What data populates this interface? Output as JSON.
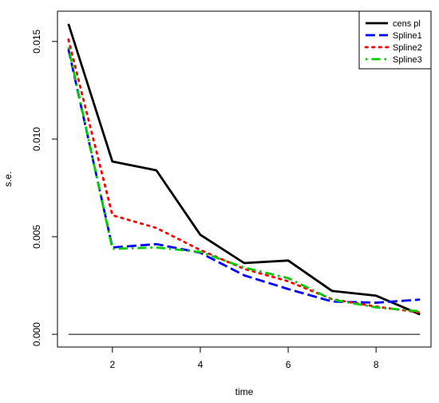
{
  "chart_data": {
    "type": "line",
    "xlabel": "time",
    "ylabel": "s.e.",
    "xlim": [
      0.75,
      9.25
    ],
    "ylim": [
      -0.00065,
      0.01655
    ],
    "x_ticks": [
      2,
      4,
      6,
      8
    ],
    "x_tick_labels": [
      "2",
      "4",
      "6",
      "8"
    ],
    "y_ticks": [
      0.0,
      0.005,
      0.01,
      0.015
    ],
    "y_tick_labels": [
      "0.000",
      "0.005",
      "0.010",
      "0.015"
    ],
    "legend_position": "top-right",
    "reference_line": {
      "y": 0
    },
    "x": [
      1,
      2,
      3,
      4,
      5,
      6,
      7,
      8,
      9
    ],
    "series": [
      {
        "name": "cens pl",
        "color": "#000000",
        "dash": "solid",
        "values": [
          0.0159,
          0.00885,
          0.0084,
          0.0051,
          0.00365,
          0.00378,
          0.00222,
          0.00198,
          0.00102
        ]
      },
      {
        "name": "Spline1",
        "color": "#0000ff",
        "dash": "dashed",
        "values": [
          0.0146,
          0.00445,
          0.00462,
          0.00418,
          0.00302,
          0.00232,
          0.00168,
          0.00162,
          0.00178
        ]
      },
      {
        "name": "Spline2",
        "color": "#ff0000",
        "dash": "dotted",
        "values": [
          0.0151,
          0.0061,
          0.00545,
          0.00432,
          0.00335,
          0.00272,
          0.0018,
          0.00142,
          0.00112
        ]
      },
      {
        "name": "Spline3",
        "color": "#00cc00",
        "dash": "dotdash",
        "values": [
          0.0147,
          0.00438,
          0.00445,
          0.00422,
          0.00342,
          0.00288,
          0.00178,
          0.00138,
          0.00118
        ]
      }
    ]
  }
}
